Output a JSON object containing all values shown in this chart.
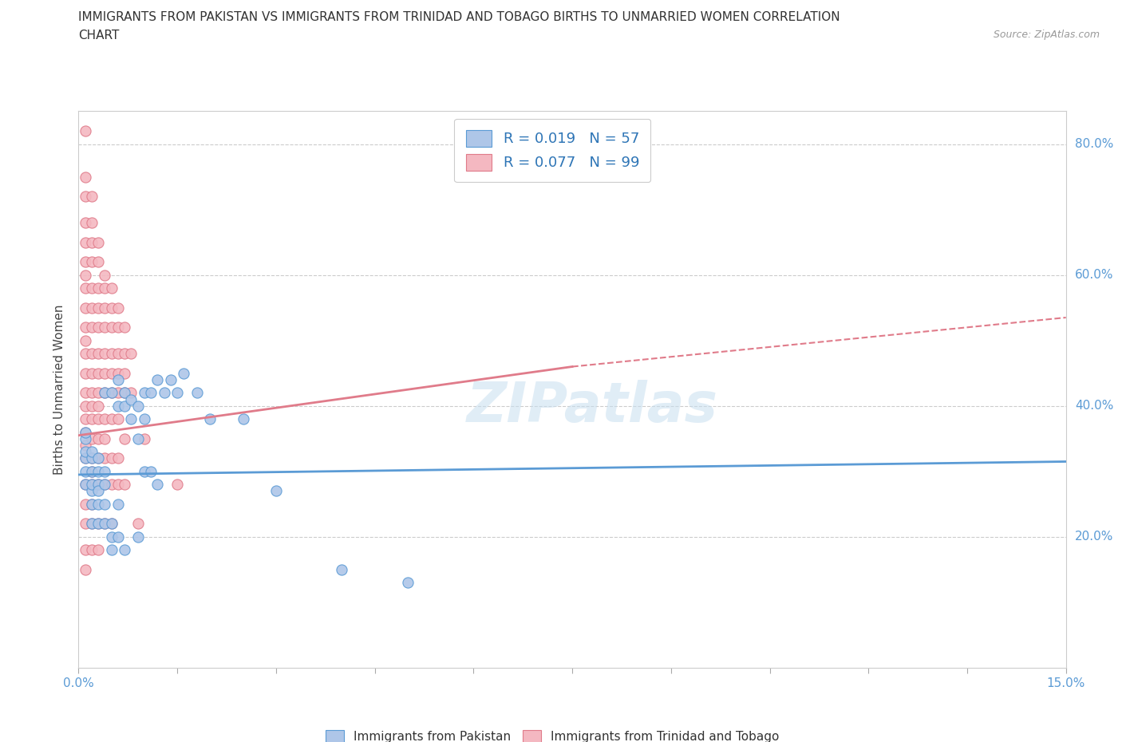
{
  "title_line1": "IMMIGRANTS FROM PAKISTAN VS IMMIGRANTS FROM TRINIDAD AND TOBAGO BIRTHS TO UNMARRIED WOMEN CORRELATION",
  "title_line2": "CHART",
  "source_text": "Source: ZipAtlas.com",
  "ylabel": "Births to Unmarried Women",
  "xlim": [
    0.0,
    0.15
  ],
  "ylim": [
    0.0,
    0.85
  ],
  "ytick_labels": [
    "20.0%",
    "40.0%",
    "60.0%",
    "80.0%"
  ],
  "ytick_vals": [
    0.2,
    0.4,
    0.6,
    0.8
  ],
  "pakistan_color": "#aec6e8",
  "pakistan_color_dark": "#5b9bd5",
  "trinidad_color": "#f4b8c1",
  "trinidad_color_dark": "#e07b8a",
  "pakistan_R": 0.019,
  "pakistan_N": 57,
  "trinidad_R": 0.077,
  "trinidad_N": 99,
  "legend_R_color": "#2e75b6",
  "pakistan_trend": [
    0.0,
    0.15,
    0.295,
    0.315
  ],
  "trinidad_trend_solid": [
    0.0,
    0.075,
    0.355,
    0.46
  ],
  "trinidad_trend_dashed": [
    0.075,
    0.15,
    0.46,
    0.535
  ],
  "pakistan_scatter": [
    [
      0.001,
      0.32
    ],
    [
      0.001,
      0.3
    ],
    [
      0.001,
      0.28
    ],
    [
      0.001,
      0.35
    ],
    [
      0.001,
      0.33
    ],
    [
      0.001,
      0.36
    ],
    [
      0.002,
      0.3
    ],
    [
      0.002,
      0.27
    ],
    [
      0.002,
      0.32
    ],
    [
      0.002,
      0.25
    ],
    [
      0.002,
      0.28
    ],
    [
      0.002,
      0.33
    ],
    [
      0.002,
      0.22
    ],
    [
      0.003,
      0.28
    ],
    [
      0.003,
      0.3
    ],
    [
      0.003,
      0.27
    ],
    [
      0.003,
      0.25
    ],
    [
      0.003,
      0.22
    ],
    [
      0.003,
      0.32
    ],
    [
      0.004,
      0.28
    ],
    [
      0.004,
      0.3
    ],
    [
      0.004,
      0.25
    ],
    [
      0.004,
      0.22
    ],
    [
      0.004,
      0.42
    ],
    [
      0.005,
      0.2
    ],
    [
      0.005,
      0.18
    ],
    [
      0.005,
      0.22
    ],
    [
      0.005,
      0.42
    ],
    [
      0.006,
      0.2
    ],
    [
      0.006,
      0.25
    ],
    [
      0.006,
      0.4
    ],
    [
      0.006,
      0.44
    ],
    [
      0.007,
      0.4
    ],
    [
      0.007,
      0.42
    ],
    [
      0.007,
      0.18
    ],
    [
      0.008,
      0.38
    ],
    [
      0.008,
      0.41
    ],
    [
      0.009,
      0.4
    ],
    [
      0.009,
      0.35
    ],
    [
      0.009,
      0.2
    ],
    [
      0.01,
      0.38
    ],
    [
      0.01,
      0.42
    ],
    [
      0.01,
      0.3
    ],
    [
      0.011,
      0.42
    ],
    [
      0.011,
      0.3
    ],
    [
      0.012,
      0.44
    ],
    [
      0.012,
      0.28
    ],
    [
      0.013,
      0.42
    ],
    [
      0.014,
      0.44
    ],
    [
      0.015,
      0.42
    ],
    [
      0.016,
      0.45
    ],
    [
      0.018,
      0.42
    ],
    [
      0.02,
      0.38
    ],
    [
      0.025,
      0.38
    ],
    [
      0.03,
      0.27
    ],
    [
      0.04,
      0.15
    ],
    [
      0.05,
      0.13
    ]
  ],
  "trinidad_scatter": [
    [
      0.001,
      0.82
    ],
    [
      0.001,
      0.75
    ],
    [
      0.001,
      0.72
    ],
    [
      0.001,
      0.68
    ],
    [
      0.001,
      0.65
    ],
    [
      0.001,
      0.62
    ],
    [
      0.001,
      0.6
    ],
    [
      0.001,
      0.58
    ],
    [
      0.001,
      0.55
    ],
    [
      0.001,
      0.52
    ],
    [
      0.001,
      0.5
    ],
    [
      0.001,
      0.48
    ],
    [
      0.001,
      0.45
    ],
    [
      0.001,
      0.42
    ],
    [
      0.001,
      0.4
    ],
    [
      0.001,
      0.38
    ],
    [
      0.001,
      0.36
    ],
    [
      0.001,
      0.34
    ],
    [
      0.001,
      0.32
    ],
    [
      0.001,
      0.28
    ],
    [
      0.001,
      0.25
    ],
    [
      0.001,
      0.22
    ],
    [
      0.001,
      0.18
    ],
    [
      0.001,
      0.15
    ],
    [
      0.002,
      0.72
    ],
    [
      0.002,
      0.68
    ],
    [
      0.002,
      0.65
    ],
    [
      0.002,
      0.62
    ],
    [
      0.002,
      0.58
    ],
    [
      0.002,
      0.55
    ],
    [
      0.002,
      0.52
    ],
    [
      0.002,
      0.48
    ],
    [
      0.002,
      0.45
    ],
    [
      0.002,
      0.42
    ],
    [
      0.002,
      0.4
    ],
    [
      0.002,
      0.38
    ],
    [
      0.002,
      0.35
    ],
    [
      0.002,
      0.32
    ],
    [
      0.002,
      0.3
    ],
    [
      0.002,
      0.28
    ],
    [
      0.002,
      0.25
    ],
    [
      0.002,
      0.22
    ],
    [
      0.002,
      0.18
    ],
    [
      0.003,
      0.65
    ],
    [
      0.003,
      0.62
    ],
    [
      0.003,
      0.58
    ],
    [
      0.003,
      0.55
    ],
    [
      0.003,
      0.52
    ],
    [
      0.003,
      0.48
    ],
    [
      0.003,
      0.45
    ],
    [
      0.003,
      0.42
    ],
    [
      0.003,
      0.4
    ],
    [
      0.003,
      0.38
    ],
    [
      0.003,
      0.35
    ],
    [
      0.003,
      0.32
    ],
    [
      0.003,
      0.28
    ],
    [
      0.003,
      0.22
    ],
    [
      0.003,
      0.18
    ],
    [
      0.004,
      0.6
    ],
    [
      0.004,
      0.58
    ],
    [
      0.004,
      0.55
    ],
    [
      0.004,
      0.52
    ],
    [
      0.004,
      0.48
    ],
    [
      0.004,
      0.45
    ],
    [
      0.004,
      0.42
    ],
    [
      0.004,
      0.38
    ],
    [
      0.004,
      0.35
    ],
    [
      0.004,
      0.32
    ],
    [
      0.004,
      0.28
    ],
    [
      0.004,
      0.22
    ],
    [
      0.005,
      0.58
    ],
    [
      0.005,
      0.55
    ],
    [
      0.005,
      0.52
    ],
    [
      0.005,
      0.48
    ],
    [
      0.005,
      0.45
    ],
    [
      0.005,
      0.42
    ],
    [
      0.005,
      0.38
    ],
    [
      0.005,
      0.32
    ],
    [
      0.005,
      0.28
    ],
    [
      0.005,
      0.22
    ],
    [
      0.006,
      0.55
    ],
    [
      0.006,
      0.52
    ],
    [
      0.006,
      0.48
    ],
    [
      0.006,
      0.45
    ],
    [
      0.006,
      0.42
    ],
    [
      0.006,
      0.38
    ],
    [
      0.006,
      0.32
    ],
    [
      0.006,
      0.28
    ],
    [
      0.007,
      0.52
    ],
    [
      0.007,
      0.48
    ],
    [
      0.007,
      0.45
    ],
    [
      0.007,
      0.42
    ],
    [
      0.007,
      0.35
    ],
    [
      0.007,
      0.28
    ],
    [
      0.008,
      0.48
    ],
    [
      0.008,
      0.42
    ],
    [
      0.009,
      0.22
    ],
    [
      0.01,
      0.35
    ],
    [
      0.015,
      0.28
    ]
  ]
}
